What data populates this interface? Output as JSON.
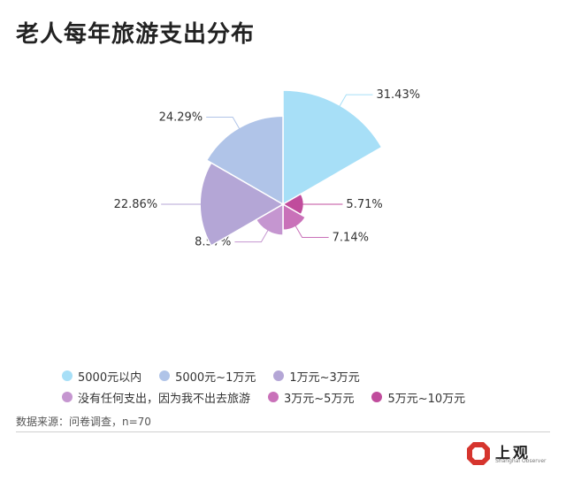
{
  "title": "老人每年旅游支出分布",
  "source": "数据来源：问卷调查，n=70",
  "logo": {
    "text": "上观",
    "sub": "Shanghai Observer"
  },
  "chart_data": {
    "type": "pie",
    "subtype": "rose",
    "title": "老人每年旅游支出分布",
    "categories": [
      "5000元以内",
      "5000元~1万元",
      "1万元~3万元",
      "没有任何支出，因为我不出去旅游",
      "3万元~5万元",
      "5万元~10万元"
    ],
    "values": [
      31.43,
      24.29,
      22.86,
      8.57,
      7.14,
      5.71
    ],
    "labels": [
      "31.43%",
      "24.29%",
      "22.86%",
      "8.57%",
      "7.14%",
      "5.71%"
    ],
    "colors": [
      "#a7dff7",
      "#b0c4e8",
      "#b4a6d6",
      "#c596d0",
      "#c971b9",
      "#c04c9c"
    ],
    "order_clockwise_from_top": [
      0,
      5,
      4,
      3,
      2,
      1
    ],
    "legend_position": "bottom",
    "unit": "%"
  }
}
